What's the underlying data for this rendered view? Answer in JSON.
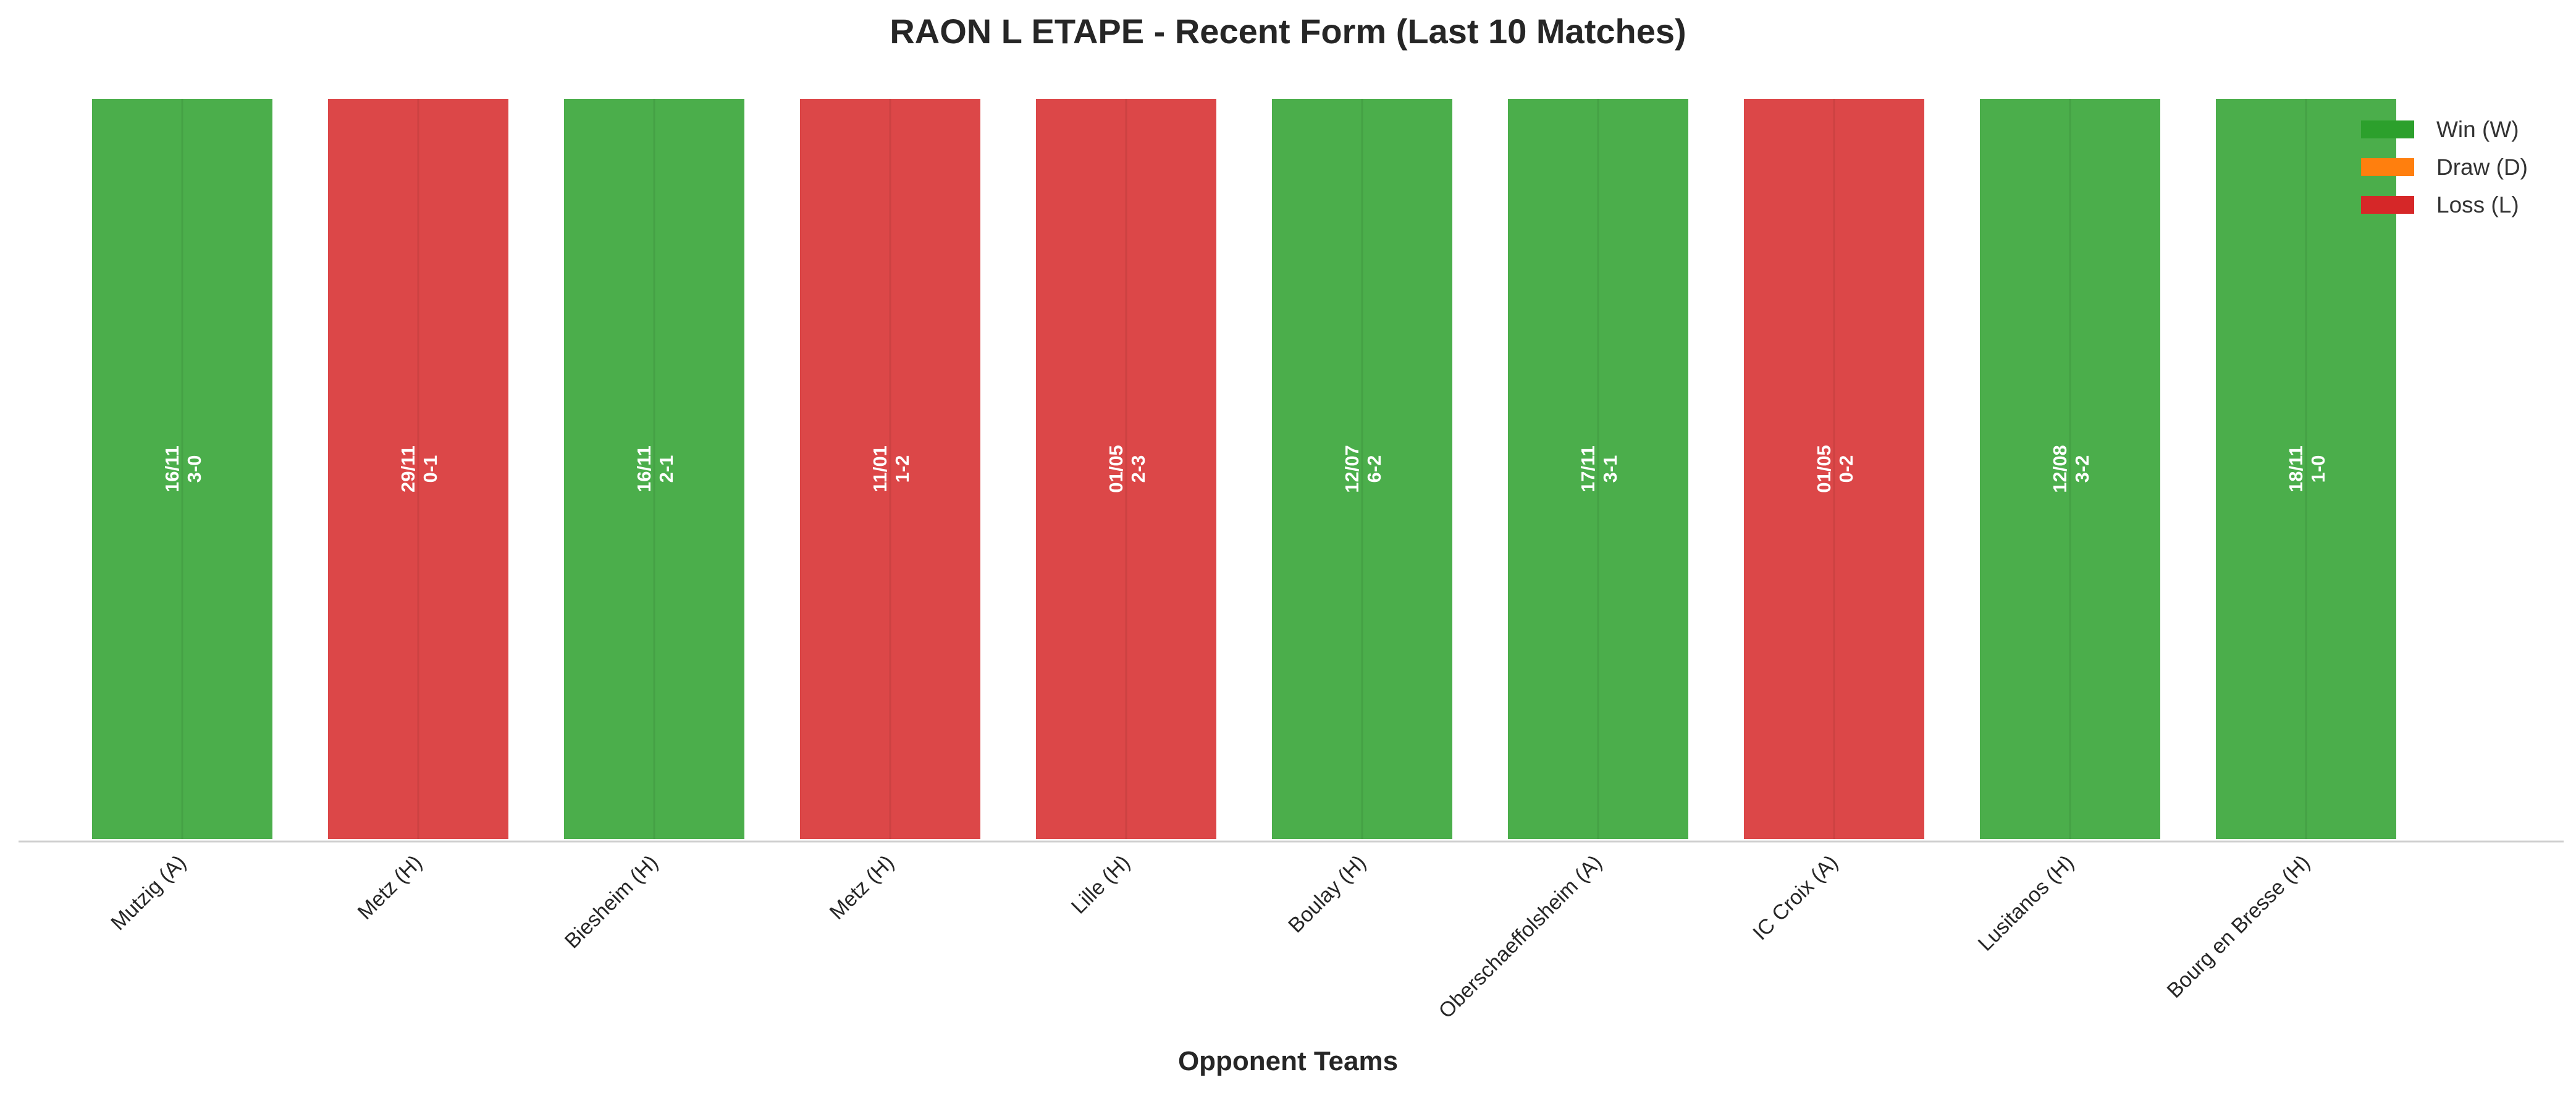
{
  "chart_data": {
    "type": "bar",
    "title": "RAON L ETAPE - Recent Form (Last 10 Matches)",
    "xlabel": "Opponent Teams",
    "ylabel": "",
    "ylim": [
      0,
      1
    ],
    "grid": false,
    "legend_position": "top-right",
    "legend": [
      {
        "key": "W",
        "label": "Win (W)",
        "color": "#2ca02c"
      },
      {
        "key": "D",
        "label": "Draw (D)",
        "color": "#ff7f0e"
      },
      {
        "key": "L",
        "label": "Loss (L)",
        "color": "#d62728"
      }
    ],
    "categories": [
      "Mutzig (A)",
      "Metz (H)",
      "Biesheim (H)",
      "Metz (H)",
      "Lille (H)",
      "Boulay (H)",
      "Oberschaeffolsheim (A)",
      "IC Croix (A)",
      "Lusitanos (H)",
      "Bourg en Bresse (H)"
    ],
    "values": [
      1,
      1,
      1,
      1,
      1,
      1,
      1,
      1,
      1,
      1
    ],
    "results": [
      "W",
      "L",
      "W",
      "L",
      "L",
      "W",
      "W",
      "L",
      "W",
      "W"
    ],
    "dates": [
      "16/11",
      "29/11",
      "16/11",
      "11/01",
      "01/05",
      "12/07",
      "17/11",
      "01/05",
      "12/08",
      "18/11"
    ],
    "scores": [
      "3-0",
      "0-1",
      "2-1",
      "1-2",
      "2-3",
      "6-2",
      "3-1",
      "0-2",
      "3-2",
      "1-0"
    ]
  }
}
